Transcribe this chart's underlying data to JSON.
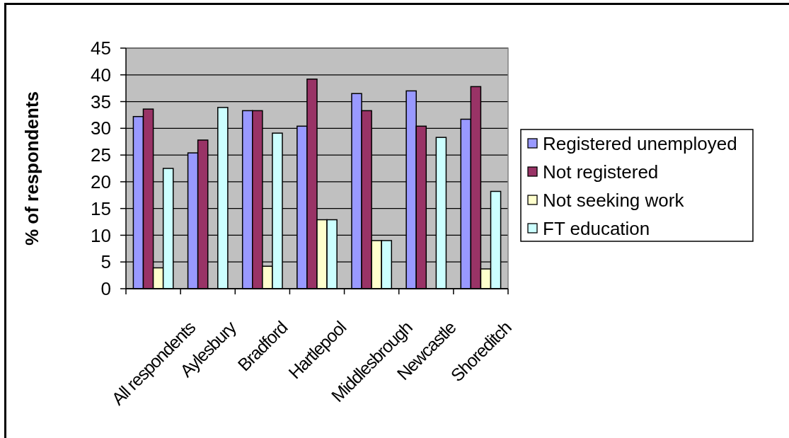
{
  "chart_data": {
    "type": "bar",
    "categories": [
      "All respondents",
      "Aylesbury",
      "Bradford",
      "Hartlepool",
      "Middlesbrough",
      "Newcastle",
      "Shoreditch"
    ],
    "series": [
      {
        "name": "Registered unemployed",
        "color": "#9999ff",
        "values": [
          32.2,
          25.4,
          33.3,
          30.4,
          36.5,
          37.0,
          31.7
        ]
      },
      {
        "name": "Not registered",
        "color": "#993366",
        "values": [
          33.6,
          27.8,
          33.3,
          39.2,
          33.3,
          30.4,
          37.8
        ]
      },
      {
        "name": "Not seeking work",
        "color": "#ffffcc",
        "values": [
          3.9,
          null,
          4.2,
          12.9,
          9.0,
          null,
          3.7
        ]
      },
      {
        "name": "FT education",
        "color": "#ccffff",
        "values": [
          22.5,
          33.9,
          29.1,
          12.9,
          9.0,
          28.3,
          18.2
        ]
      }
    ],
    "ylabel": "% of respondents",
    "ylim": [
      0,
      45
    ],
    "yticks": [
      0,
      5,
      10,
      15,
      20,
      25,
      30,
      35,
      40,
      45
    ],
    "grid": "y",
    "legend": "right"
  }
}
